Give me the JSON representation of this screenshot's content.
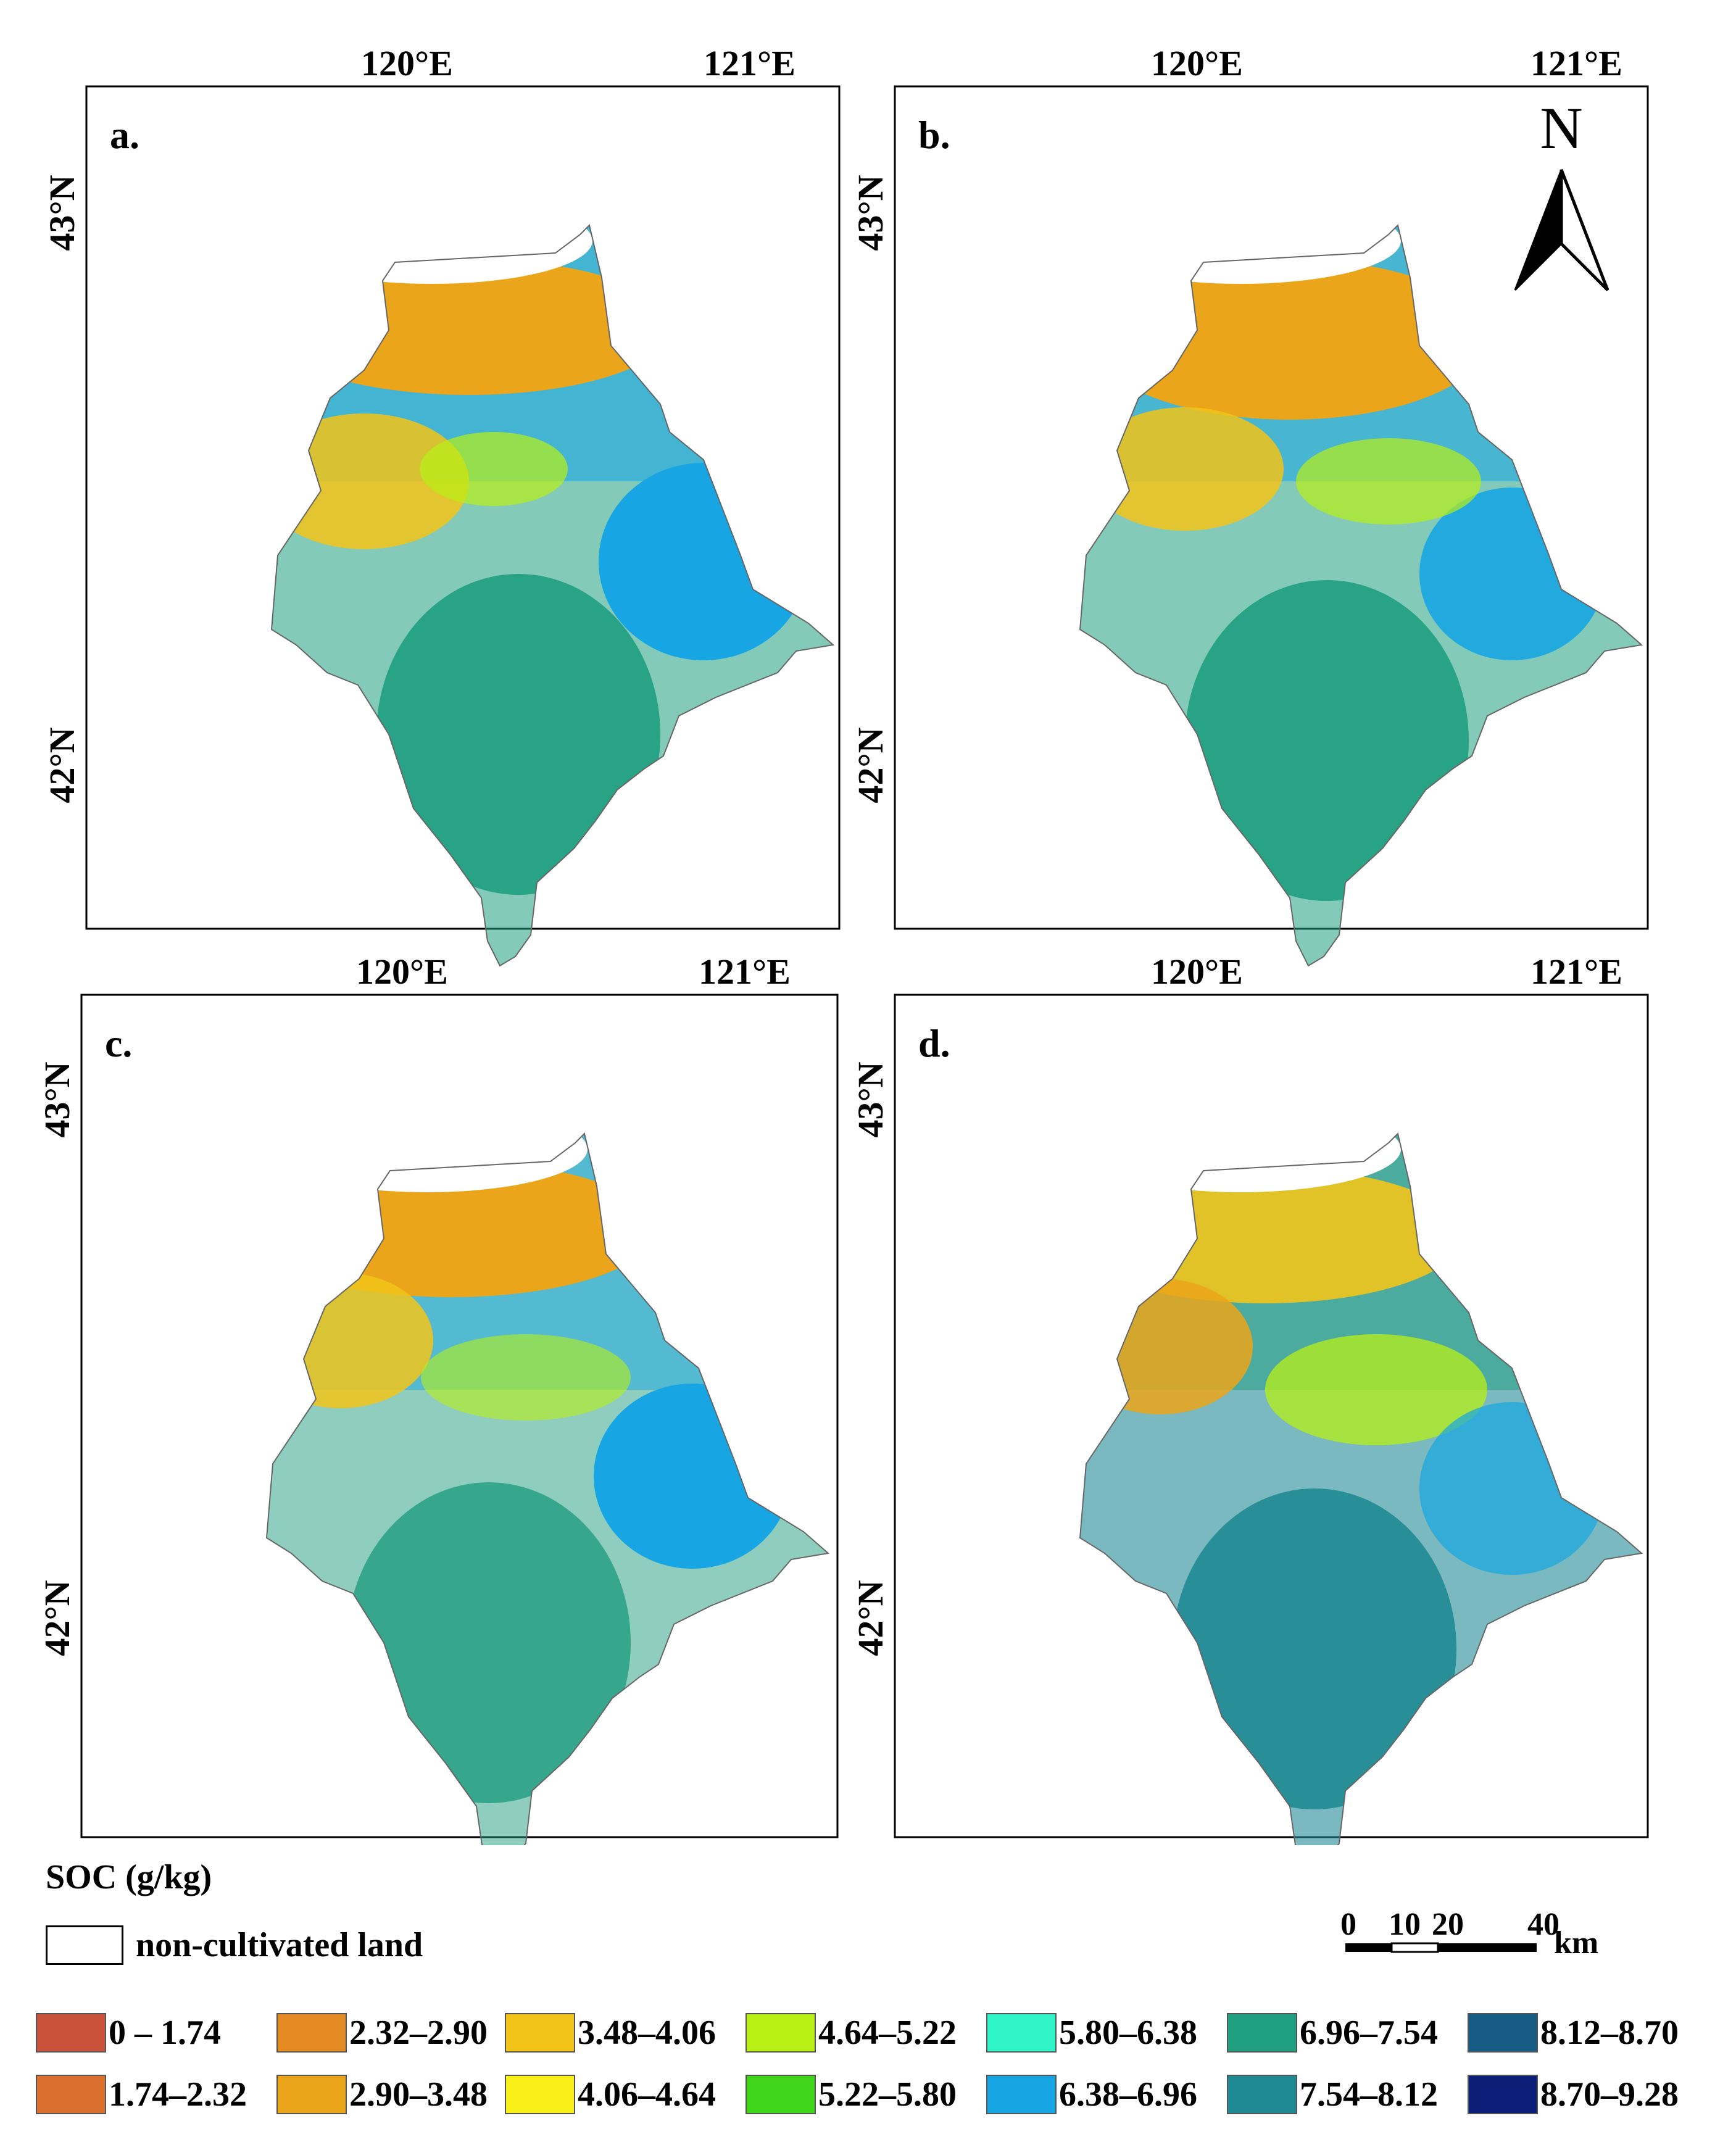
{
  "panels": [
    {
      "label": "a.",
      "lon_labels": [
        "120°E",
        "121°E"
      ],
      "lat_labels": [
        "43°N",
        "42°N"
      ]
    },
    {
      "label": "b.",
      "lon_labels": [
        "120°E",
        "121°E"
      ],
      "lat_labels": [
        "43°N",
        "42°N"
      ]
    },
    {
      "label": "c.",
      "lon_labels": [
        "120°E",
        "121°E"
      ],
      "lat_labels": [
        "43°N",
        "42°N"
      ]
    },
    {
      "label": "d.",
      "lon_labels": [
        "120°E",
        "121°E"
      ],
      "lat_labels": [
        "43°N",
        "42°N"
      ]
    }
  ],
  "north_arrow": {
    "letter": "N"
  },
  "legend": {
    "title": "SOC (g/kg)",
    "non_cultivated": "non-cultivated land",
    "classes": [
      {
        "label": "0 – 1.74",
        "color": "#c9523b"
      },
      {
        "label": "1.74–2.32",
        "color": "#d9702f"
      },
      {
        "label": "2.32–2.90",
        "color": "#e38a24"
      },
      {
        "label": "2.90–3.48",
        "color": "#eba51a"
      },
      {
        "label": "3.48–4.06",
        "color": "#f2c419"
      },
      {
        "label": "4.06–4.64",
        "color": "#faf019"
      },
      {
        "label": "4.64–5.22",
        "color": "#b8f016"
      },
      {
        "label": "5.22–5.80",
        "color": "#3fd61a"
      },
      {
        "label": "5.80–6.38",
        "color": "#2ff4c8"
      },
      {
        "label": "6.38–6.96",
        "color": "#17a6e3"
      },
      {
        "label": "6.96–7.54",
        "color": "#1f9e80"
      },
      {
        "label": "7.54–8.12",
        "color": "#1f8a94"
      },
      {
        "label": "8.12–8.70",
        "color": "#165c85"
      },
      {
        "label": "8.70–9.28",
        "color": "#0c1f78"
      }
    ]
  },
  "scale_bar": {
    "ticks": [
      "0",
      "10",
      "20",
      "40"
    ],
    "unit": "km"
  }
}
